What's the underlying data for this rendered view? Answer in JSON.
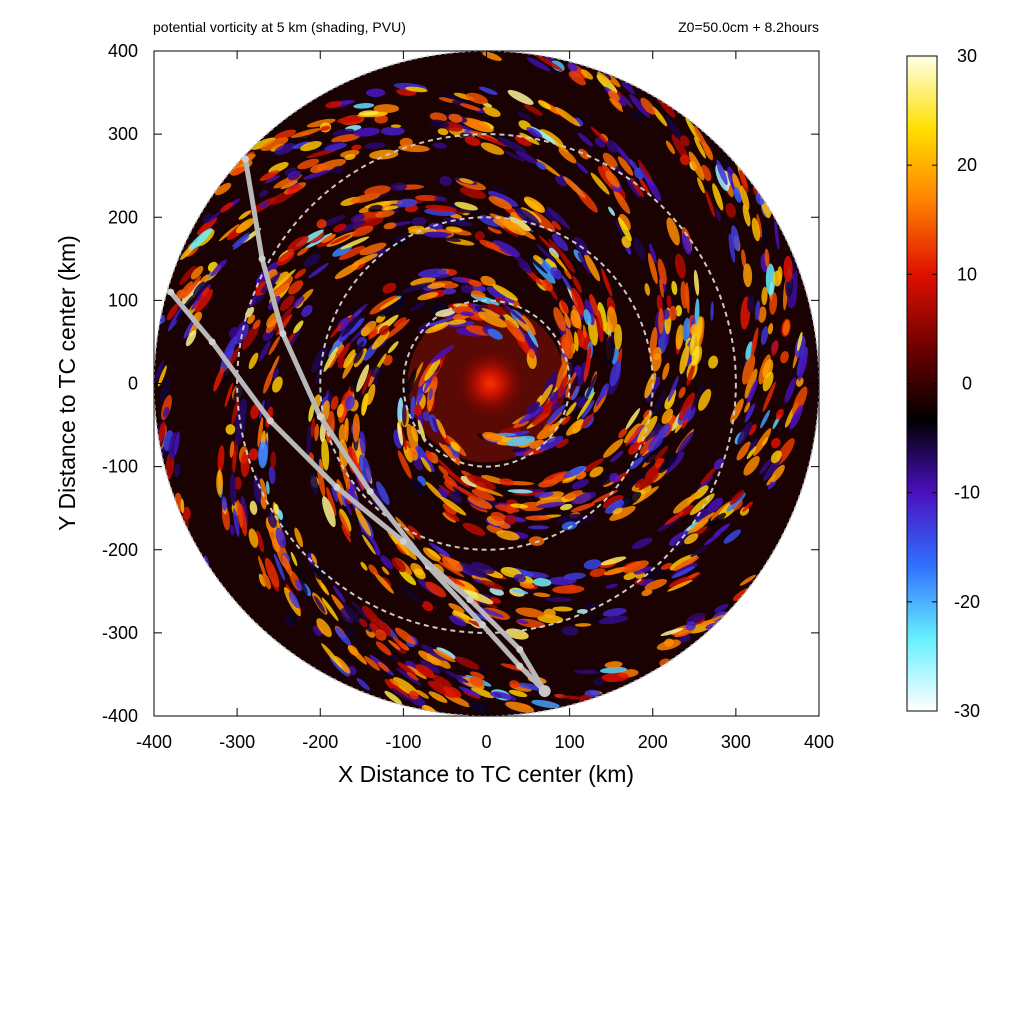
{
  "chart_data": {
    "type": "heatmap",
    "title": "potential vorticity at 5 km (shading, PVU)",
    "subtitle": "Z0=50.0cm  + 8.2hours",
    "xlabel": "X Distance to TC center (km)",
    "ylabel": "Y Distance to TC center (km)",
    "xlim": [
      -400,
      400
    ],
    "ylim": [
      -400,
      400
    ],
    "xticks": [
      "-400",
      "-300",
      "-200",
      "-100",
      "0",
      "100",
      "200",
      "300",
      "400"
    ],
    "yticks": [
      "400",
      "300",
      "200",
      "100",
      "0",
      "-100",
      "-200",
      "-300",
      "-400"
    ],
    "domain_radius_km": 400,
    "range_rings_km": [
      100,
      200,
      300
    ],
    "colorbar": {
      "range": [
        -30,
        30
      ],
      "ticks": [
        "30",
        "20",
        "10",
        "0",
        "-10",
        "-20",
        "-30"
      ],
      "colors": [
        "#ffffff",
        "#66f0ff",
        "#3070ff",
        "#4a10c0",
        "#000000",
        "#700000",
        "#e01000",
        "#ff8000",
        "#ffe000",
        "#ffffe8"
      ]
    },
    "tracks": [
      {
        "points": [
          [
            -290,
            270
          ],
          [
            -270,
            150
          ],
          [
            -245,
            60
          ],
          [
            -200,
            -40
          ],
          [
            -140,
            -130
          ],
          [
            -70,
            -220
          ],
          [
            -5,
            -290
          ],
          [
            40,
            -340
          ],
          [
            70,
            -370
          ]
        ]
      },
      {
        "points": [
          [
            -380,
            110
          ],
          [
            -330,
            50
          ],
          [
            -260,
            -45
          ],
          [
            -180,
            -125
          ],
          [
            -100,
            -190
          ],
          [
            -20,
            -260
          ],
          [
            40,
            -320
          ],
          [
            70,
            -370
          ]
        ]
      }
    ],
    "grid": false
  }
}
